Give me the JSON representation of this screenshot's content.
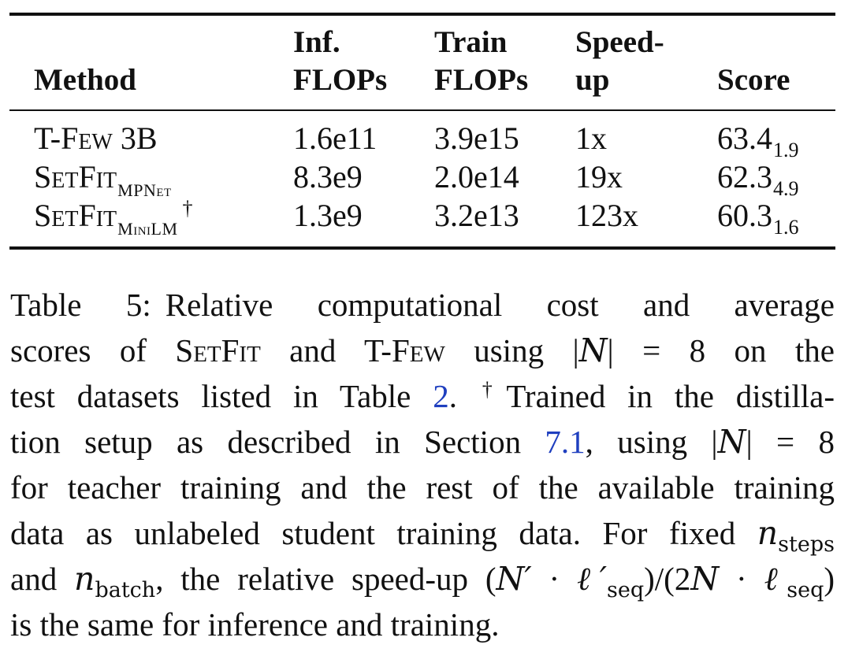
{
  "table": {
    "headers": {
      "method": "Method",
      "inf_line1": "Inf.",
      "inf_line2": "FLOPs",
      "train_line1": "Train",
      "train_line2": "FLOPs",
      "speed_line1": "Speed-",
      "speed_line2": "up",
      "score": "Score"
    },
    "rows": [
      {
        "method": "T-Few 3B",
        "method_sub": "",
        "dagger": "",
        "inf_flops": "1.6e11",
        "train_flops": "3.9e15",
        "speedup": "1x",
        "score": "63.4",
        "score_std": "1.9"
      },
      {
        "method": "SetFit",
        "method_sub": "MPNet",
        "dagger": "",
        "inf_flops": "8.3e9",
        "train_flops": "2.0e14",
        "speedup": "19x",
        "score": "62.3",
        "score_std": "4.9"
      },
      {
        "method": "SetFit",
        "method_sub": "MiniLM",
        "dagger": "†",
        "inf_flops": "1.3e9",
        "train_flops": "3.2e13",
        "speedup": "123x",
        "score": "60.3",
        "score_std": "1.6"
      }
    ]
  },
  "caption": {
    "label": "Table 5:",
    "l1_text": "Relative computational cost and average",
    "l2_a": "scores of ",
    "l2_setfit": "SetFit",
    "l2_b": " and T-",
    "l2_few": "Few",
    "l2_c": " using |",
    "l2_N": "N",
    "l2_d": "| = 8 on the",
    "l3_a": "test datasets listed in Table ",
    "l3_ref": "2",
    "l3_b": ".",
    "l3_dagger": "†",
    "l3_c": "Trained in the distilla-",
    "l4_a": "tion setup as described in Section ",
    "l4_ref": "7.1",
    "l4_b": ", using |",
    "l4_N": "N",
    "l4_c": "| = 8",
    "l5": "for teacher training and the rest of the available training",
    "l6_a": "data as unlabeled student training data. For fixed ",
    "l6_n": "n",
    "l6_sub": "steps",
    "l7_a": "and ",
    "l7_n": "n",
    "l7_sub": "batch",
    "l7_b": ", the relative speed-up (",
    "l7_N1": "N′",
    "l7_c": " · ",
    "l7_ell1": "ℓ′",
    "l7_seq1": "seq",
    "l7_d": ")/(2",
    "l7_N2": "N",
    "l7_e": " · ",
    "l7_ell2": "ℓ",
    "l7_seq2": "seq",
    "l7_f": ")",
    "l8": "is the same for inference and training."
  }
}
